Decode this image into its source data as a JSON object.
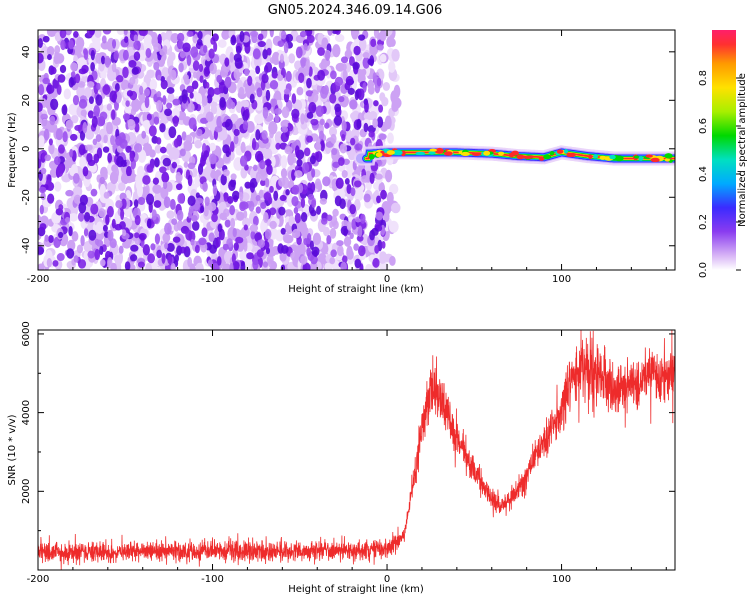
{
  "title": "GN05.2024.346.09.14.G06",
  "colors": {
    "snr_line": "#ee2b2b",
    "scatter": "#7a1fe0",
    "colormap": [
      "#ffffff",
      "#e6c8f7",
      "#b57af2",
      "#6a12e8",
      "#3b2bff",
      "#00b7ff",
      "#00e0c0",
      "#00d800",
      "#a8ef00",
      "#ffe100",
      "#ff9a00",
      "#ff3c3c",
      "#ff1f6a"
    ]
  },
  "chart_data": [
    {
      "type": "heatmap",
      "xlabel": "Height of straight line (km)",
      "ylabel": "Frequency (Hz)",
      "xlim": [
        -200,
        165
      ],
      "ylim": [
        -50,
        49
      ],
      "xticks": [
        "-200",
        "-100",
        "0",
        "100"
      ],
      "yticks": [
        "40",
        "20",
        "0",
        "-20",
        "-40"
      ],
      "colorbar": {
        "label": "Normalized spectral amplitude",
        "range": [
          0.0,
          1.0
        ],
        "ticks": [
          "0.0",
          "0.2",
          "0.4",
          "0.6",
          "0.8"
        ]
      },
      "description_regions": {
        "noise_x_range": [
          -200,
          -2
        ],
        "signal_x_range": [
          -15,
          165
        ],
        "signal_frequency_track": [
          [
            -10,
            -2
          ],
          [
            0,
            -1.5
          ],
          [
            20,
            -1.5
          ],
          [
            40,
            -1.5
          ],
          [
            60,
            -2
          ],
          [
            75,
            -3
          ],
          [
            90,
            -3.5
          ],
          [
            100,
            -1.5
          ],
          [
            115,
            -3
          ],
          [
            130,
            -4
          ],
          [
            150,
            -4
          ],
          [
            165,
            -4
          ]
        ]
      }
    },
    {
      "type": "line",
      "xlabel": "Height of straight line (km)",
      "ylabel": "SNR (10 * v/v)",
      "xlim": [
        -200,
        165
      ],
      "ylim": [
        0,
        6100
      ],
      "xticks": [
        "-200",
        "-100",
        "0",
        "100"
      ],
      "yticks": [
        "6000",
        "4000",
        "2000"
      ],
      "series": [
        {
          "x": [
            -200,
            -150,
            -100,
            -50,
            0,
            10,
            15,
            20,
            25,
            30,
            40,
            50,
            60,
            65,
            70,
            80,
            90,
            100,
            105,
            110,
            120,
            130,
            140,
            150,
            160,
            165
          ],
          "y": [
            450,
            450,
            470,
            480,
            520,
            900,
            2200,
            3600,
            4700,
            4400,
            3300,
            2500,
            1800,
            1600,
            1800,
            2400,
            3300,
            4000,
            4700,
            5100,
            5000,
            4650,
            4700,
            4850,
            4950,
            5050
          ]
        }
      ]
    }
  ]
}
